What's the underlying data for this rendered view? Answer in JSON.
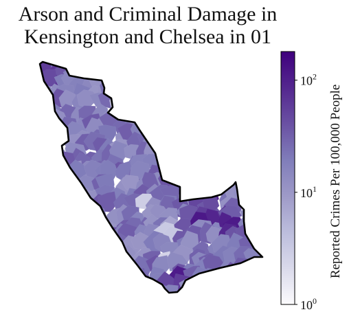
{
  "title": {
    "line1": "Arson and Criminal Damage in",
    "line2": "Kensington and Chelsea in 01"
  },
  "colorbar": {
    "label": "Reported Crimes Per 100,000 People",
    "scale": "log",
    "min": 1,
    "max": 180,
    "ticks": [
      {
        "value": 1,
        "base": "10",
        "exp": "0"
      },
      {
        "value": 10,
        "base": "10",
        "exp": "1"
      },
      {
        "value": 100,
        "base": "10",
        "exp": "2"
      }
    ],
    "colormap": [
      "#fcfbfd",
      "#dadaeb",
      "#bcbddc",
      "#9e9ac8",
      "#807dba",
      "#6a51a3",
      "#54278f",
      "#3f007d"
    ]
  },
  "colors": {
    "boundary": "#000000",
    "background": "#ffffff"
  }
}
